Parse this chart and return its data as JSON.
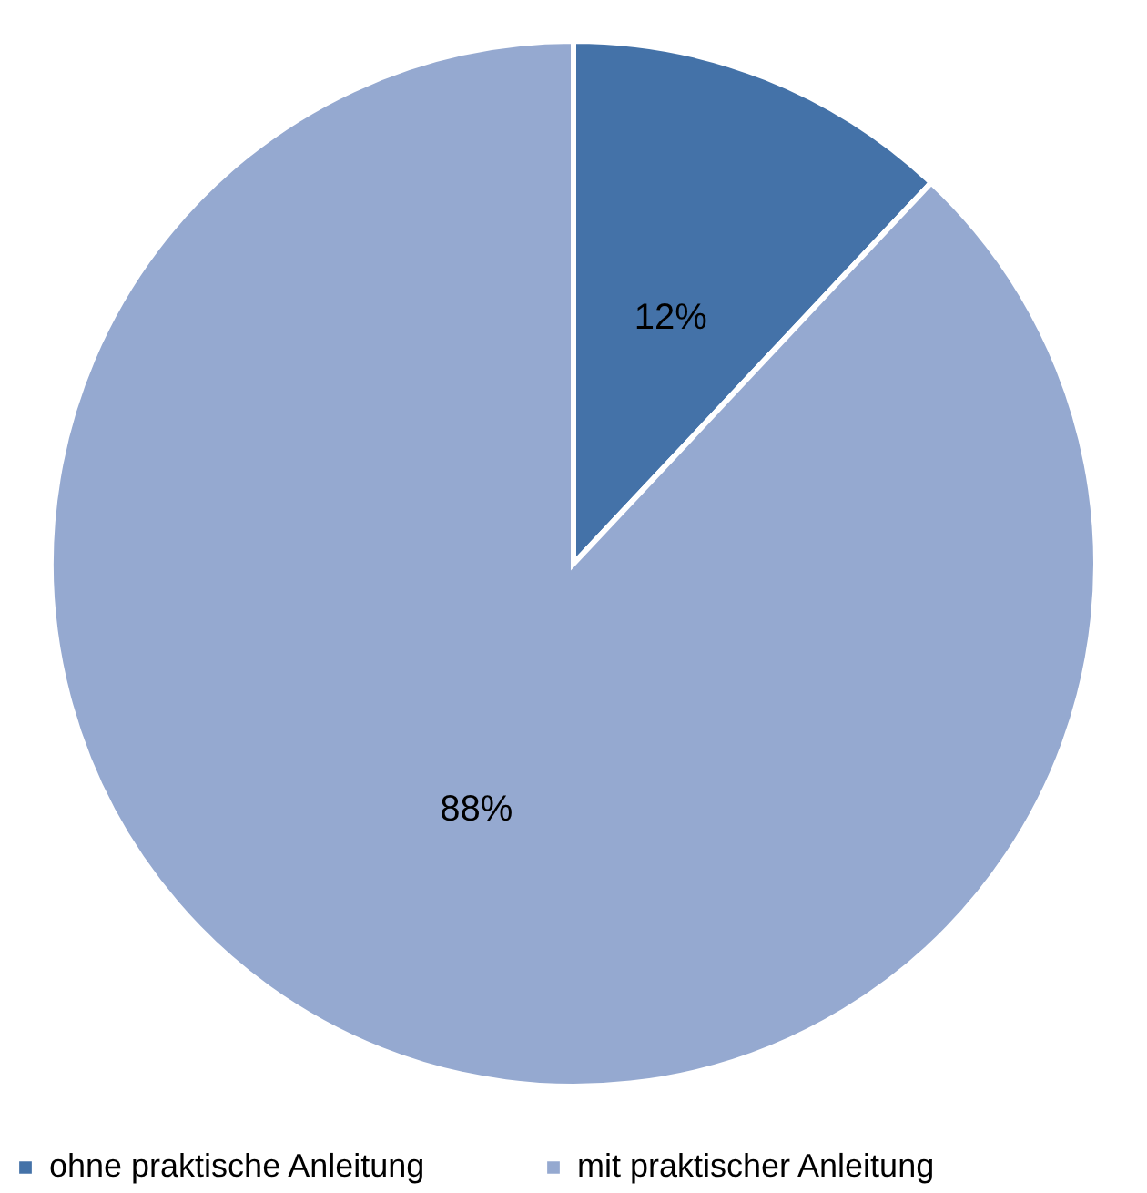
{
  "chart_data": {
    "type": "pie",
    "categories": [
      "ohne praktische Anleitung",
      "mit praktischer Anleitung"
    ],
    "values": [
      12,
      88
    ],
    "colors": [
      "#4472a8",
      "#95a9d0"
    ],
    "value_labels": [
      "12%",
      "88%"
    ],
    "legend": "bottom"
  }
}
